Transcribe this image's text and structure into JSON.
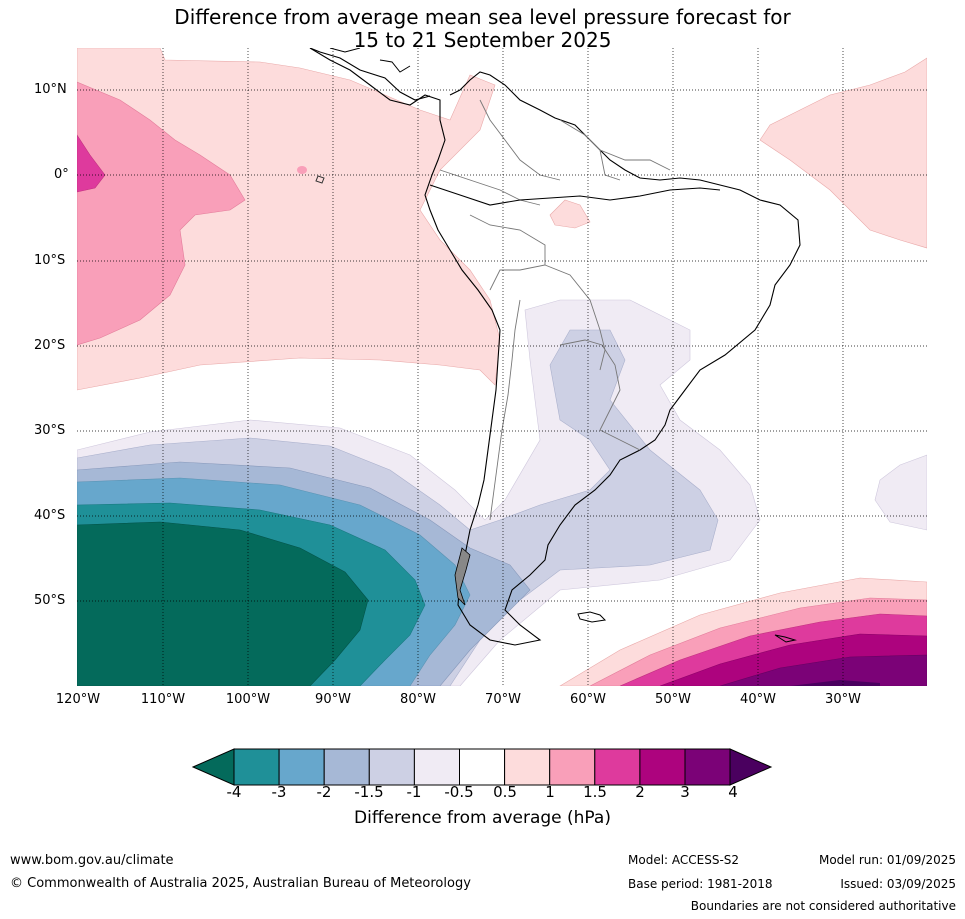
{
  "title": {
    "line1": "Difference from average mean sea level pressure forecast for",
    "line2": "15 to 21 September 2025"
  },
  "axes": {
    "lat_labels": [
      "10°N",
      "0°",
      "10°S",
      "20°S",
      "30°S",
      "40°S",
      "50°S"
    ],
    "lon_labels": [
      "120°W",
      "110°W",
      "100°W",
      "90°W",
      "80°W",
      "70°W",
      "60°W",
      "50°W",
      "40°W",
      "30°W"
    ]
  },
  "legend": {
    "title": "Difference from average (hPa)",
    "labels": [
      "-4",
      "-3",
      "-2",
      "-1.5",
      "-1",
      "-0.5",
      "0.5",
      "1",
      "1.5",
      "2",
      "3",
      "4"
    ],
    "colors": {
      "below_-4": "#046a5b",
      "-4_-3": "#1f9098",
      "-3_-2": "#67a7cc",
      "-2_-1.5": "#a6b8d6",
      "-1.5_-1": "#cdd0e4",
      "-1_-0.5": "#f0ebf4",
      "-0.5_0.5": "#ffffff",
      "0.5_1": "#fddcdc",
      "1_1.5": "#f99fb9",
      "1.5_2": "#de3a9d",
      "2_3": "#ad037e",
      "3_4": "#7b0277",
      "above_4": "#4a005f"
    }
  },
  "footer": {
    "website": "www.bom.gov.au/climate",
    "copyright": "© Commonwealth of Australia 2025, Australian Bureau of Meteorology",
    "model": "Model: ACCESS-S2",
    "base_period": "Base period: 1981-2018",
    "model_run": "Model run: 01/09/2025",
    "issued": "Issued: 03/09/2025",
    "boundaries": "Boundaries are not considered authoritative"
  }
}
